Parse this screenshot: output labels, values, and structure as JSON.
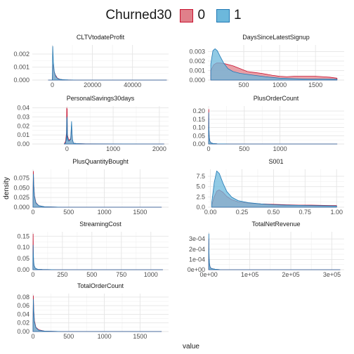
{
  "legend": {
    "title": "Churned30",
    "items": [
      {
        "label": "0",
        "fill": "#e0808a",
        "stroke": "#c8102e"
      },
      {
        "label": "1",
        "fill": "#6cb8dc",
        "stroke": "#1f78b4"
      }
    ]
  },
  "chart_data": {
    "type": "area",
    "xlabel": "value",
    "ylabel": "density",
    "facet_var": "variable",
    "grid": true,
    "legend_position": "top",
    "panels": [
      {
        "title": "CLTVtodateProfit",
        "xlim": [
          -10000,
          58000
        ],
        "ylim": [
          0,
          0.0027
        ],
        "xticks": [
          0,
          20000,
          40000
        ],
        "xtick_labels": [
          "0",
          "20000",
          "40000"
        ],
        "yticks": [
          0,
          0.001,
          0.002
        ],
        "ytick_labels": [
          "0.000",
          "0.001",
          "0.002"
        ],
        "series": [
          {
            "name": "0",
            "x": [
              -2000,
              0,
              300,
              800,
              1500,
              2500,
              4000,
              6000,
              9000,
              12000,
              20000,
              40000,
              57000
            ],
            "y": [
              0,
              0,
              0.0012,
              0.0007,
              0.0004,
              0.00015,
              5e-05,
              2e-05,
              1e-05,
              0,
              0,
              0,
              0
            ]
          },
          {
            "name": "1",
            "x": [
              -2000,
              0,
              200,
              500,
              1000,
              1800,
              3000,
              5000,
              8000,
              12000,
              20000,
              40000,
              57000
            ],
            "y": [
              0,
              0,
              0.0026,
              0.0014,
              0.0006,
              0.00025,
              8e-05,
              3e-05,
              1e-05,
              0,
              0,
              0,
              0
            ]
          }
        ]
      },
      {
        "title": "DaysSinceLatestSignup",
        "xlim": [
          0,
          1900
        ],
        "ylim": [
          0,
          0.0037
        ],
        "xticks": [
          500,
          1000,
          1500
        ],
        "xtick_labels": [
          "500",
          "1000",
          "1500"
        ],
        "yticks": [
          0,
          0.001,
          0.002,
          0.003
        ],
        "ytick_labels": [
          "0.000",
          "0.001",
          "0.002",
          "0.003"
        ],
        "series": [
          {
            "name": "0",
            "x": [
              40,
              80,
              120,
              180,
              250,
              350,
              450,
              550,
              650,
              750,
              900,
              1000,
              1100,
              1200,
              1300,
              1500,
              1600,
              1700,
              1800
            ],
            "y": [
              0.001,
              0.0016,
              0.0018,
              0.0018,
              0.0017,
              0.0015,
              0.0012,
              0.0009,
              0.0008,
              0.0007,
              0.0005,
              0.0004,
              0.00035,
              0.0004,
              0.0004,
              0.0004,
              0.00035,
              0.0003,
              0.0002
            ]
          },
          {
            "name": "1",
            "x": [
              40,
              70,
              100,
              130,
              170,
              220,
              280,
              350,
              450,
              550,
              650,
              800,
              1000,
              1200,
              1400,
              1600,
              1800
            ],
            "y": [
              0.0017,
              0.0031,
              0.0033,
              0.0031,
              0.0025,
              0.0018,
              0.0012,
              0.0009,
              0.0007,
              0.0006,
              0.0005,
              0.00035,
              0.0002,
              0.00015,
              0.0001,
              0.0001,
              8e-05
            ]
          }
        ]
      },
      {
        "title": "PersonalSavings30days",
        "xlim": [
          -750,
          2200
        ],
        "ylim": [
          0,
          0.042
        ],
        "xticks": [
          0,
          1000,
          2000
        ],
        "xtick_labels": [
          "0",
          "1000",
          "2000"
        ],
        "yticks": [
          0,
          0.01,
          0.02,
          0.03,
          0.04
        ],
        "ytick_labels": [
          "0.00",
          "0.01",
          "0.02",
          "0.03",
          "0.04"
        ],
        "series": [
          {
            "name": "0",
            "x": [
              -60,
              -30,
              -10,
              -4,
              -2,
              0,
              2,
              4,
              10,
              40,
              80,
              100,
              110,
              120,
              140,
              200,
              400,
              2100
            ],
            "y": [
              0,
              0.003,
              0.012,
              0.04,
              0.02,
              0.005,
              0.02,
              0.039,
              0.01,
              0.004,
              0.006,
              0.02,
              0.01,
              0.004,
              0.001,
              0.0005,
              0.0002,
              0
            ]
          },
          {
            "name": "1",
            "x": [
              -60,
              -30,
              -10,
              -4,
              -2,
              0,
              2,
              4,
              10,
              40,
              80,
              100,
              110,
              120,
              140,
              200,
              400,
              2100
            ],
            "y": [
              0,
              0.001,
              0.008,
              0.028,
              0.015,
              0.004,
              0.016,
              0.03,
              0.008,
              0.003,
              0.005,
              0.025,
              0.012,
              0.005,
              0.001,
              0.0005,
              0.0001,
              0
            ]
          }
        ]
      },
      {
        "title": "PlusOrderCount",
        "xlim": [
          -10,
          1900
        ],
        "ylim": [
          0,
          0.23
        ],
        "xticks": [
          0,
          500,
          1000
        ],
        "xtick_labels": [
          "0",
          "500",
          "1000"
        ],
        "yticks": [
          0,
          0.05,
          0.1,
          0.15,
          0.2
        ],
        "ytick_labels": [
          "0.00",
          "0.05",
          "0.10",
          "0.15",
          "0.20"
        ],
        "series": [
          {
            "name": "0",
            "x": [
              0,
              2,
              4,
              8,
              15,
              30,
              60,
              120,
              300,
              1800
            ],
            "y": [
              0.05,
              0.21,
              0.12,
              0.05,
              0.02,
              0.008,
              0.003,
              0.001,
              0,
              0
            ]
          },
          {
            "name": "1",
            "x": [
              0,
              2,
              4,
              8,
              15,
              30,
              60,
              120,
              300,
              1800
            ],
            "y": [
              0.05,
              0.19,
              0.11,
              0.05,
              0.02,
              0.008,
              0.003,
              0.001,
              0,
              0
            ]
          }
        ]
      },
      {
        "title": "PlusQuantityBought",
        "xlim": [
          -10,
          1900
        ],
        "ylim": [
          0,
          0.098
        ],
        "xticks": [
          0,
          500,
          1000,
          1500
        ],
        "xtick_labels": [
          "0",
          "500",
          "1000",
          "1500"
        ],
        "yticks": [
          0,
          0.025,
          0.05,
          0.075
        ],
        "ytick_labels": [
          "0.000",
          "0.025",
          "0.050",
          "0.075"
        ],
        "series": [
          {
            "name": "0",
            "x": [
              0,
              5,
              10,
              20,
              40,
              80,
              160,
              400,
              1800
            ],
            "y": [
              0.03,
              0.093,
              0.06,
              0.03,
              0.012,
              0.004,
              0.001,
              0,
              0
            ]
          },
          {
            "name": "1",
            "x": [
              0,
              5,
              10,
              20,
              40,
              80,
              160,
              400,
              1800
            ],
            "y": [
              0.03,
              0.085,
              0.055,
              0.028,
              0.011,
              0.004,
              0.001,
              0,
              0
            ]
          }
        ]
      },
      {
        "title": "S001",
        "xlim": [
          -0.02,
          1.06
        ],
        "ylim": [
          0,
          9.2
        ],
        "xticks": [
          0,
          0.25,
          0.5,
          0.75,
          1.0
        ],
        "xtick_labels": [
          "0.00",
          "0.25",
          "0.50",
          "0.75",
          "1.00"
        ],
        "yticks": [
          0,
          2.5,
          5,
          7.5
        ],
        "ytick_labels": [
          "0.0",
          "2.5",
          "5.0",
          "7.5"
        ],
        "series": [
          {
            "name": "0",
            "x": [
              0.01,
              0.03,
              0.05,
              0.07,
              0.1,
              0.13,
              0.17,
              0.22,
              0.3,
              0.4,
              0.5,
              0.6,
              0.7,
              0.8,
              0.9,
              1.0
            ],
            "y": [
              0.5,
              2.5,
              3.9,
              4.2,
              3.6,
              2.6,
              1.8,
              1.3,
              1.0,
              0.8,
              0.7,
              0.6,
              0.5,
              0.5,
              0.45,
              0.4
            ]
          },
          {
            "name": "1",
            "x": [
              0.01,
              0.03,
              0.05,
              0.07,
              0.1,
              0.13,
              0.17,
              0.22,
              0.3,
              0.4,
              0.5,
              0.6,
              0.7,
              0.8,
              0.9,
              1.0
            ],
            "y": [
              1.0,
              6.0,
              8.8,
              8.2,
              5.8,
              3.8,
              2.4,
              1.6,
              1.1,
              0.8,
              0.6,
              0.5,
              0.45,
              0.4,
              0.35,
              0.3
            ]
          }
        ]
      },
      {
        "title": "StreamingCost",
        "xlim": [
          -5,
          1150
        ],
        "ylim": [
          0,
          0.17
        ],
        "xticks": [
          0,
          250,
          500,
          750,
          1000
        ],
        "xtick_labels": [
          "0",
          "250",
          "500",
          "750",
          "1000"
        ],
        "yticks": [
          0,
          0.05,
          0.1,
          0.15
        ],
        "ytick_labels": [
          "0.00",
          "0.05",
          "0.10",
          "0.15"
        ],
        "series": [
          {
            "name": "0",
            "x": [
              0,
              2,
              4,
              6,
              10,
              20,
              40,
              80,
              200,
              1100
            ],
            "y": [
              0.03,
              0.16,
              0.07,
              0.03,
              0.015,
              0.006,
              0.002,
              0.001,
              0,
              0
            ]
          },
          {
            "name": "1",
            "x": [
              0,
              2,
              4,
              6,
              10,
              20,
              40,
              80,
              200,
              1100
            ],
            "y": [
              0.02,
              0.11,
              0.07,
              0.04,
              0.02,
              0.007,
              0.002,
              0.001,
              0,
              0
            ]
          }
        ]
      },
      {
        "title": "TotalNetRevenue",
        "xlim": [
          -2000,
          330000
        ],
        "ylim": [
          0,
          0.00037
        ],
        "xticks": [
          0,
          100000,
          200000,
          300000
        ],
        "xtick_labels": [
          "0e+00",
          "1e+05",
          "2e+05",
          "3e+05"
        ],
        "yticks": [
          0,
          0.0001,
          0.0002,
          0.0003
        ],
        "ytick_labels": [
          "0e+00",
          "1e-04",
          "2e-04",
          "3e-04"
        ],
        "series": [
          {
            "name": "0",
            "x": [
              0,
              300,
              600,
              1000,
              2000,
              4000,
              8000,
              15000,
              30000,
              100000,
              320000
            ],
            "y": [
              5e-05,
              0.0003,
              0.00018,
              0.0001,
              5e-05,
              2e-05,
              1e-05,
              5e-06,
              0,
              0,
              0
            ]
          },
          {
            "name": "1",
            "x": [
              0,
              300,
              600,
              1000,
              2000,
              4000,
              8000,
              15000,
              30000,
              100000,
              320000
            ],
            "y": [
              5e-05,
              0.00035,
              0.0002,
              0.00011,
              5e-05,
              2e-05,
              1e-05,
              5e-06,
              0,
              0,
              0
            ]
          }
        ]
      },
      {
        "title": "TotalOrderCount",
        "xlim": [
          -10,
          1900
        ],
        "ylim": [
          0,
          0.088
        ],
        "xticks": [
          0,
          500,
          1000,
          1500
        ],
        "xtick_labels": [
          "0",
          "500",
          "1000",
          "1500"
        ],
        "yticks": [
          0,
          0.02,
          0.04,
          0.06,
          0.08
        ],
        "ytick_labels": [
          "0.00",
          "0.02",
          "0.04",
          "0.06",
          "0.08"
        ],
        "series": [
          {
            "name": "0",
            "x": [
              0,
              5,
              10,
              20,
              40,
              80,
              160,
              400,
              1800
            ],
            "y": [
              0.02,
              0.083,
              0.05,
              0.025,
              0.01,
              0.004,
              0.001,
              0,
              0
            ]
          },
          {
            "name": "1",
            "x": [
              0,
              5,
              10,
              20,
              40,
              80,
              160,
              400,
              1800
            ],
            "y": [
              0.02,
              0.075,
              0.045,
              0.022,
              0.009,
              0.003,
              0.001,
              0,
              0
            ]
          }
        ]
      }
    ]
  }
}
